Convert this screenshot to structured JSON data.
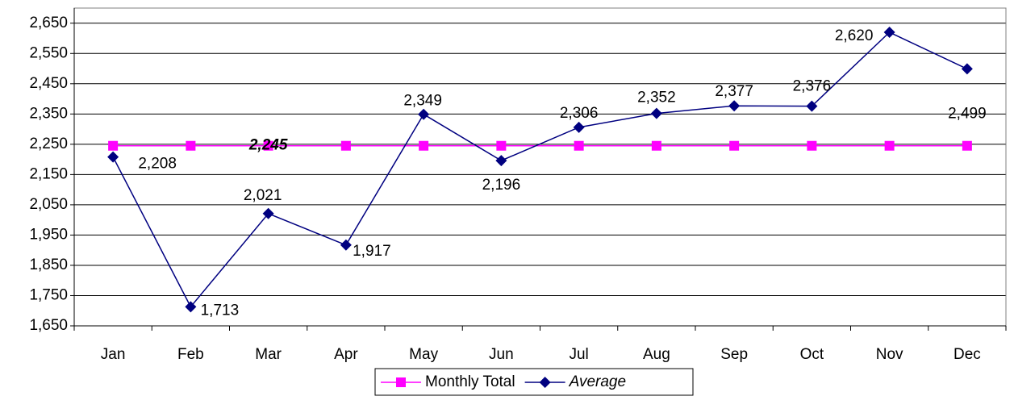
{
  "chart_data": {
    "type": "line",
    "categories": [
      "Jan",
      "Feb",
      "Mar",
      "Apr",
      "May",
      "Jun",
      "Jul",
      "Aug",
      "Sep",
      "Oct",
      "Nov",
      "Dec"
    ],
    "series": [
      {
        "name": "Monthly Total",
        "color": "#ff00ff",
        "marker": "square",
        "values": [
          2245,
          2245,
          2245,
          2245,
          2245,
          2245,
          2245,
          2245,
          2245,
          2245,
          2245,
          2245
        ],
        "value_labels": [
          null,
          null,
          "2,245",
          null,
          null,
          null,
          null,
          null,
          null,
          null,
          null,
          null
        ]
      },
      {
        "name": "Average",
        "color": "#000080",
        "marker": "diamond",
        "values": [
          2208,
          1713,
          2021,
          1917,
          2349,
          2196,
          2306,
          2352,
          2377,
          2376,
          2620,
          2499
        ],
        "value_labels": [
          "2,208",
          "1,713",
          "2,021",
          "1,917",
          "2,349",
          "2,196",
          "2,306",
          "2,352",
          "2,377",
          "2,376",
          "2,620",
          "2,499"
        ]
      }
    ],
    "ylim": [
      1650,
      2700
    ],
    "yticks": [
      {
        "value": 1650,
        "label": "1,650"
      },
      {
        "value": 1750,
        "label": "1,750"
      },
      {
        "value": 1850,
        "label": "1,850"
      },
      {
        "value": 1950,
        "label": "1,950"
      },
      {
        "value": 2050,
        "label": "2,050"
      },
      {
        "value": 2150,
        "label": "2,150"
      },
      {
        "value": 2250,
        "label": "2,250"
      },
      {
        "value": 2350,
        "label": "2,350"
      },
      {
        "value": 2450,
        "label": "2,450"
      },
      {
        "value": 2550,
        "label": "2,550"
      },
      {
        "value": 2650,
        "label": "2,650"
      }
    ],
    "grid": true
  }
}
